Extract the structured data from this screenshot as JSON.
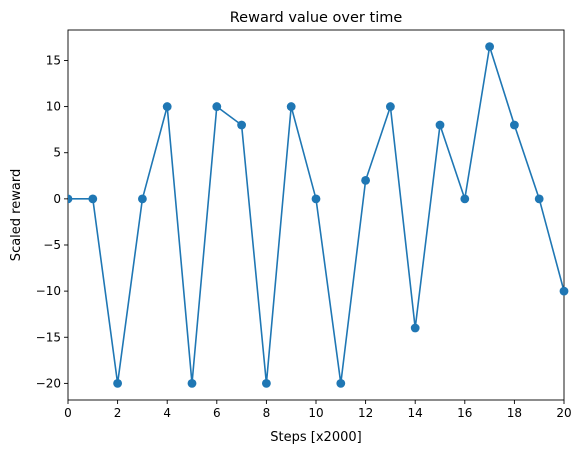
{
  "chart_data": {
    "type": "line",
    "title": "Reward value over time",
    "xlabel": "Steps [x2000]",
    "ylabel": "Scaled reward",
    "xlim": [
      0,
      20
    ],
    "ylim": [
      -21.8,
      18.3
    ],
    "xticks": [
      0,
      2,
      4,
      6,
      8,
      10,
      12,
      14,
      16,
      18,
      20
    ],
    "yticks": [
      -20,
      -15,
      -10,
      -5,
      0,
      5,
      10,
      15
    ],
    "grid": false,
    "line_color": "#1f77b4",
    "marker": "circle",
    "series": [
      {
        "x": [
          0,
          1,
          2,
          3,
          4,
          5,
          6,
          7,
          8,
          9,
          10,
          11,
          12,
          13,
          14,
          15,
          16,
          17,
          18,
          19,
          20
        ],
        "values": [
          0,
          0,
          -20,
          0,
          10,
          -20,
          10,
          8,
          -20,
          10,
          0,
          -20,
          2,
          10,
          -14,
          8,
          0,
          16.5,
          8,
          0,
          -10
        ]
      }
    ]
  }
}
